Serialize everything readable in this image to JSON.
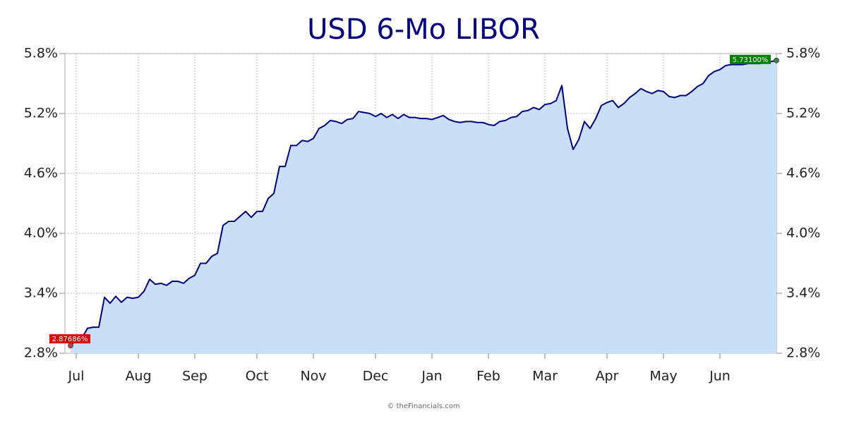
{
  "chart_data": {
    "type": "area",
    "title": "USD 6-Mo LIBOR",
    "source": "© theFinancials.com",
    "color": "#000080",
    "fill": "#c9dff7",
    "grid": true,
    "ylim": [
      2.8,
      5.8
    ],
    "yticks": [
      {
        "value": 2.8,
        "label": "2.8%"
      },
      {
        "value": 3.4,
        "label": "3.4%"
      },
      {
        "value": 4.0,
        "label": "4.0%"
      },
      {
        "value": 4.6,
        "label": "4.6%"
      },
      {
        "value": 5.2,
        "label": "5.2%"
      },
      {
        "value": 5.8,
        "label": "5.8%"
      }
    ],
    "categories": [
      null,
      "Jul",
      null,
      null,
      null,
      null,
      null,
      null,
      null,
      null,
      null,
      null,
      "Aug",
      null,
      null,
      null,
      null,
      null,
      null,
      null,
      null,
      null,
      "Sep",
      null,
      null,
      null,
      null,
      null,
      null,
      null,
      null,
      null,
      null,
      "Oct",
      null,
      null,
      null,
      null,
      null,
      null,
      null,
      null,
      null,
      "Nov",
      null,
      null,
      null,
      null,
      null,
      null,
      null,
      null,
      null,
      null,
      "Dec",
      null,
      null,
      null,
      null,
      null,
      null,
      null,
      null,
      null,
      "Jan",
      null,
      null,
      null,
      null,
      null,
      null,
      null,
      null,
      null,
      "Feb",
      null,
      null,
      null,
      null,
      null,
      null,
      null,
      null,
      null,
      "Mar",
      null,
      null,
      null,
      null,
      null,
      null,
      null,
      null,
      null,
      null,
      "Apr",
      null,
      null,
      null,
      null,
      null,
      null,
      null,
      null,
      null,
      "May",
      null,
      null,
      null,
      null,
      null,
      null,
      null,
      null,
      null,
      "Jun",
      null,
      null,
      null,
      null,
      null,
      null,
      null,
      null,
      null,
      null
    ],
    "values": [
      2.87686,
      2.93,
      2.95,
      3.05,
      3.06,
      3.06,
      3.36,
      3.3,
      3.37,
      3.31,
      3.36,
      3.35,
      3.36,
      3.42,
      3.54,
      3.49,
      3.5,
      3.48,
      3.52,
      3.52,
      3.5,
      3.55,
      3.58,
      3.7,
      3.7,
      3.77,
      3.8,
      4.08,
      4.12,
      4.12,
      4.17,
      4.22,
      4.16,
      4.22,
      4.22,
      4.35,
      4.4,
      4.67,
      4.67,
      4.88,
      4.88,
      4.93,
      4.92,
      4.95,
      5.05,
      5.08,
      5.13,
      5.12,
      5.1,
      5.14,
      5.15,
      5.22,
      5.21,
      5.2,
      5.17,
      5.2,
      5.16,
      5.19,
      5.15,
      5.19,
      5.16,
      5.16,
      5.15,
      5.15,
      5.14,
      5.16,
      5.18,
      5.14,
      5.12,
      5.11,
      5.12,
      5.12,
      5.11,
      5.11,
      5.09,
      5.08,
      5.12,
      5.13,
      5.16,
      5.17,
      5.22,
      5.23,
      5.26,
      5.24,
      5.29,
      5.3,
      5.33,
      5.48,
      5.05,
      4.84,
      4.94,
      5.12,
      5.05,
      5.15,
      5.28,
      5.31,
      5.33,
      5.26,
      5.3,
      5.36,
      5.4,
      5.45,
      5.42,
      5.4,
      5.43,
      5.42,
      5.37,
      5.36,
      5.38,
      5.38,
      5.42,
      5.47,
      5.5,
      5.58,
      5.62,
      5.64,
      5.68,
      5.69,
      5.69,
      5.69,
      5.7,
      5.7,
      5.7,
      5.71,
      5.72,
      5.731
    ],
    "value_labels": [
      "2.87686%",
      null,
      null,
      null,
      null,
      null,
      null,
      null,
      null,
      null,
      null,
      null,
      null,
      null,
      null,
      null,
      null,
      null,
      null,
      null,
      null,
      null,
      null,
      null,
      null,
      null,
      null,
      null,
      null,
      null,
      null,
      null,
      null,
      null,
      null,
      null,
      null,
      null,
      null,
      null,
      null,
      null,
      null,
      null,
      null,
      null,
      null,
      null,
      null,
      null,
      null,
      null,
      null,
      null,
      null,
      null,
      null,
      null,
      null,
      null,
      null,
      null,
      null,
      null,
      null,
      null,
      null,
      null,
      null,
      null,
      null,
      null,
      null,
      null,
      null,
      null,
      null,
      null,
      null,
      null,
      null,
      null,
      null,
      null,
      null,
      null,
      null,
      null,
      null,
      null,
      null,
      null,
      null,
      null,
      null,
      null,
      null,
      null,
      null,
      null,
      null,
      null,
      null,
      null,
      null,
      null,
      null,
      null,
      null,
      null,
      null,
      null,
      null,
      null,
      null,
      null,
      null,
      null,
      null,
      null,
      null,
      null,
      null,
      null,
      null,
      "5.73100%"
    ]
  }
}
